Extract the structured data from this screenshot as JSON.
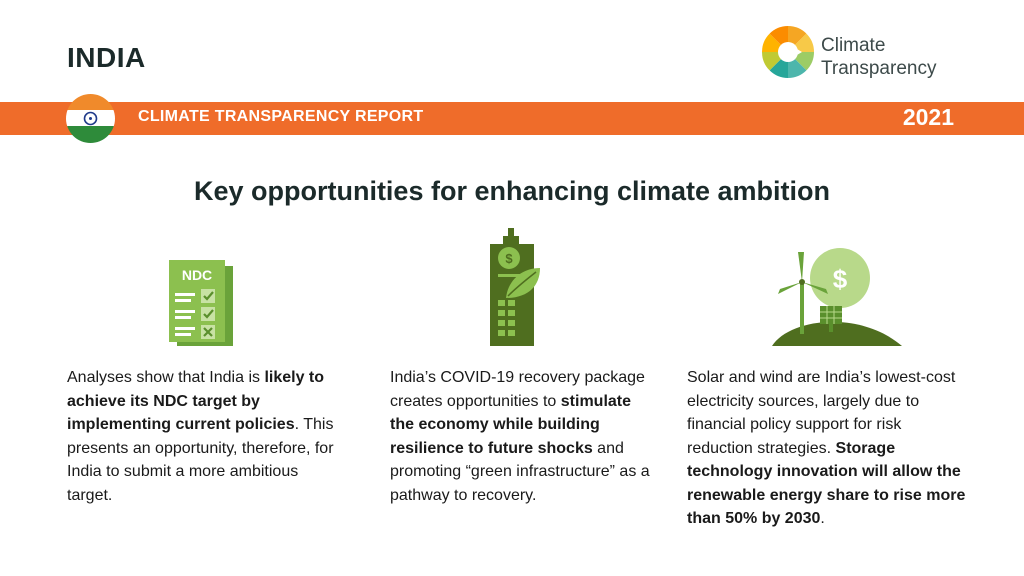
{
  "header": {
    "country": "INDIA",
    "report_title": "CLIMATE TRANSPARENCY REPORT",
    "year": "2021",
    "logo_line1": "Climate",
    "logo_line2": "Transparency",
    "band_color": "#ef6c2a"
  },
  "headline": "Key opportunities for enhancing climate ambition",
  "columns": [
    {
      "icon": "ndc-checklist-icon",
      "icon_label": "NDC",
      "segments": [
        {
          "text": "Analyses show that India is ",
          "bold": false
        },
        {
          "text": "likely to achieve its NDC target by implementing current policies",
          "bold": true
        },
        {
          "text": ". This presents an opportunity, therefore, for India to submit a more ambitious target.",
          "bold": false
        }
      ]
    },
    {
      "icon": "green-building-icon",
      "icon_label": "$",
      "segments": [
        {
          "text": "India’s COVID-19 recovery package creates opportunities to ",
          "bold": false
        },
        {
          "text": "stimulate the economy while building resilience to future shocks",
          "bold": true
        },
        {
          "text": " and promoting “green infrastructure” as a pathway to recovery.",
          "bold": false
        }
      ]
    },
    {
      "icon": "wind-solar-icon",
      "icon_label": "$",
      "segments": [
        {
          "text": "Solar and wind are India’s lowest-cost electricity sources, largely due to financial policy support for risk reduction strategies. ",
          "bold": false
        },
        {
          "text": "Storage technology innovation will allow the renewable energy share to rise more than 50% by 2030",
          "bold": true
        },
        {
          "text": ".",
          "bold": false
        }
      ]
    }
  ]
}
